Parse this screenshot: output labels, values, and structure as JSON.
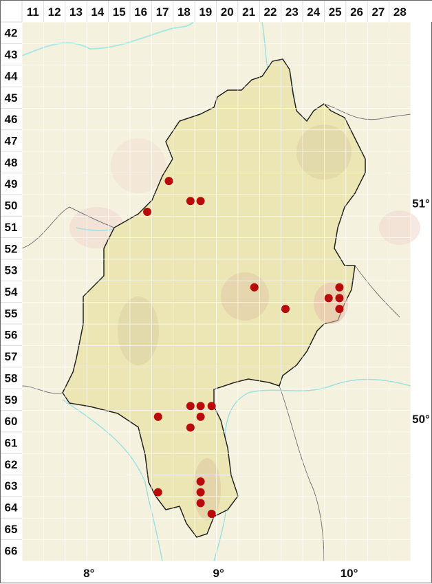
{
  "grid": {
    "columns": [
      "11",
      "12",
      "13",
      "14",
      "15",
      "16",
      "17",
      "18",
      "19",
      "20",
      "21",
      "22",
      "23",
      "24",
      "25",
      "26",
      "27",
      "28"
    ],
    "rows": [
      "42",
      "43",
      "44",
      "45",
      "46",
      "47",
      "48",
      "49",
      "50",
      "51",
      "52",
      "53",
      "54",
      "55",
      "56",
      "57",
      "58",
      "59",
      "60",
      "61",
      "62",
      "63",
      "64",
      "65",
      "66"
    ]
  },
  "latitude_labels": [
    {
      "text": "51°",
      "row": 49.9
    },
    {
      "text": "50°",
      "row": 59.9
    }
  ],
  "longitude_labels": [
    {
      "text": "8°",
      "col": 13.6
    },
    {
      "text": "9°",
      "col": 19.6
    },
    {
      "text": "10°",
      "col": 25.65
    }
  ],
  "colors": {
    "dot": "#b80c0c",
    "background": "#f4f2de",
    "region_fill": "#ebe6b4",
    "border": "#222222",
    "river": "#9fe6e6",
    "grid": "#ffffff"
  },
  "occurrences": [
    {
      "col": 17.3,
      "row": 48.87
    },
    {
      "col": 18.3,
      "row": 49.8
    },
    {
      "col": 18.77,
      "row": 49.8
    },
    {
      "col": 16.3,
      "row": 50.3
    },
    {
      "col": 21.26,
      "row": 53.8
    },
    {
      "col": 22.7,
      "row": 54.8
    },
    {
      "col": 24.7,
      "row": 54.3
    },
    {
      "col": 25.2,
      "row": 53.8
    },
    {
      "col": 25.2,
      "row": 54.3
    },
    {
      "col": 25.2,
      "row": 54.8
    },
    {
      "col": 18.3,
      "row": 59.3
    },
    {
      "col": 18.77,
      "row": 59.3
    },
    {
      "col": 19.28,
      "row": 59.3
    },
    {
      "col": 18.77,
      "row": 59.8
    },
    {
      "col": 16.8,
      "row": 59.8
    },
    {
      "col": 18.3,
      "row": 60.3
    },
    {
      "col": 18.77,
      "row": 62.8
    },
    {
      "col": 18.77,
      "row": 63.3
    },
    {
      "col": 18.77,
      "row": 63.8
    },
    {
      "col": 16.8,
      "row": 63.3
    },
    {
      "col": 19.28,
      "row": 64.3
    }
  ]
}
